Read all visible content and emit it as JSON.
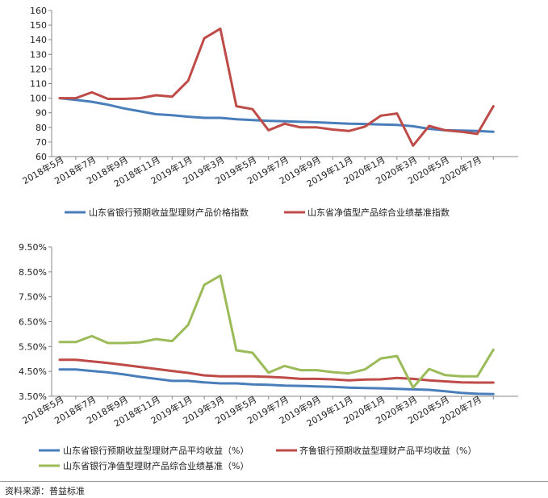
{
  "colors": {
    "blue": "#4a7ebb",
    "red": "#be4b48",
    "green": "#9bbb59",
    "axis": "#888888",
    "text": "#222222"
  },
  "chart_data": [
    {
      "type": "line",
      "title": "",
      "xlabel": "",
      "ylabel": "",
      "ylim": [
        60,
        160
      ],
      "yticks": [
        "60",
        "70",
        "80",
        "90",
        "100",
        "110",
        "120",
        "130",
        "140",
        "150",
        "160"
      ],
      "x": [
        "2018年5月",
        "2018年6月",
        "2018年7月",
        "2018年8月",
        "2018年9月",
        "2018年10月",
        "2018年11月",
        "2018年12月",
        "2019年1月",
        "2019年2月",
        "2019年3月",
        "2019年4月",
        "2019年5月",
        "2019年6月",
        "2019年7月",
        "2019年8月",
        "2019年9月",
        "2019年10月",
        "2019年11月",
        "2019年12月",
        "2020年1月",
        "2020年2月",
        "2020年3月",
        "2020年4月",
        "2020年5月",
        "2020年6月",
        "2020年7月",
        "2020年8月"
      ],
      "xtick_labels": [
        "2018年5月",
        "2018年7月",
        "2018年9月",
        "2018年11月",
        "2019年1月",
        "2019年3月",
        "2019年5月",
        "2019年7月",
        "2019年9月",
        "2019年11月",
        "2020年1月",
        "2020年3月",
        "2020年5月",
        "2020年7月"
      ],
      "series": [
        {
          "name": "山东省银行预期收益型理财产品价格指数",
          "color": "#4a7ebb",
          "values": [
            100,
            98.8,
            97.5,
            95.5,
            93,
            91,
            89,
            88.3,
            87.3,
            86.5,
            86.5,
            85.5,
            85,
            84.5,
            84.2,
            83.8,
            83.5,
            83,
            82.5,
            82.3,
            82,
            81.7,
            80.8,
            79,
            78,
            77.8,
            77.5,
            77
          ]
        },
        {
          "name": "山东省净值型产品综合业绩基准指数",
          "color": "#be4b48",
          "values": [
            100,
            100,
            104,
            99.5,
            99.5,
            100,
            102,
            101,
            112,
            141,
            147.5,
            94.5,
            92.5,
            78,
            82.5,
            80,
            80,
            78.5,
            77.5,
            80.5,
            88,
            89.5,
            67.5,
            81,
            78,
            77,
            75.5,
            94.5
          ]
        }
      ],
      "legend": "bottom"
    },
    {
      "type": "line",
      "title": "",
      "xlabel": "",
      "ylabel": "",
      "ylim": [
        3.5,
        9.5
      ],
      "yticks": [
        "3.50%",
        "4.50%",
        "5.50%",
        "6.50%",
        "7.50%",
        "8.50%",
        "9.50%"
      ],
      "x": [
        "2018年5月",
        "2018年6月",
        "2018年7月",
        "2018年8月",
        "2018年9月",
        "2018年10月",
        "2018年11月",
        "2018年12月",
        "2019年1月",
        "2019年2月",
        "2019年3月",
        "2019年4月",
        "2019年5月",
        "2019年6月",
        "2019年7月",
        "2019年8月",
        "2019年9月",
        "2019年10月",
        "2019年11月",
        "2019年12月",
        "2020年1月",
        "2020年2月",
        "2020年3月",
        "2020年4月",
        "2020年5月",
        "2020年6月",
        "2020年7月",
        "2020年8月"
      ],
      "xtick_labels": [
        "2018年5月",
        "2018年7月",
        "2018年9月",
        "2018年11月",
        "2019年1月",
        "2019年3月",
        "2019年5月",
        "2019年7月",
        "2019年9月",
        "2019年11月",
        "2020年1月",
        "2020年3月",
        "2020年5月",
        "2020年7月"
      ],
      "series": [
        {
          "name": "山东省银行预期收益型理财产品平均收益（%）",
          "color": "#4a7ebb",
          "values": [
            4.58,
            4.58,
            4.52,
            4.46,
            4.38,
            4.28,
            4.2,
            4.12,
            4.12,
            4.06,
            4.02,
            4.02,
            3.98,
            3.96,
            3.93,
            3.92,
            3.9,
            3.88,
            3.85,
            3.83,
            3.82,
            3.8,
            3.78,
            3.76,
            3.7,
            3.64,
            3.6,
            3.59
          ]
        },
        {
          "name": "齐鲁银行预期收益型理财产品平均收益（%）",
          "color": "#be4b48",
          "values": [
            4.97,
            4.97,
            4.9,
            4.84,
            4.76,
            4.68,
            4.6,
            4.52,
            4.44,
            4.34,
            4.3,
            4.3,
            4.3,
            4.28,
            4.25,
            4.2,
            4.2,
            4.18,
            4.14,
            4.17,
            4.18,
            4.24,
            4.2,
            4.14,
            4.1,
            4.06,
            4.05,
            4.05
          ]
        },
        {
          "name": "山东省银行净值型理财产品综合业绩基准（%）",
          "color": "#9bbb59",
          "values": [
            5.68,
            5.68,
            5.92,
            5.64,
            5.64,
            5.67,
            5.8,
            5.72,
            6.37,
            7.98,
            8.35,
            5.35,
            5.25,
            4.45,
            4.72,
            4.55,
            4.55,
            4.47,
            4.42,
            4.58,
            5.02,
            5.12,
            3.85,
            4.6,
            4.35,
            4.3,
            4.3,
            5.37
          ]
        }
      ],
      "legend": "bottom"
    }
  ],
  "source": "资料来源：普益标准"
}
